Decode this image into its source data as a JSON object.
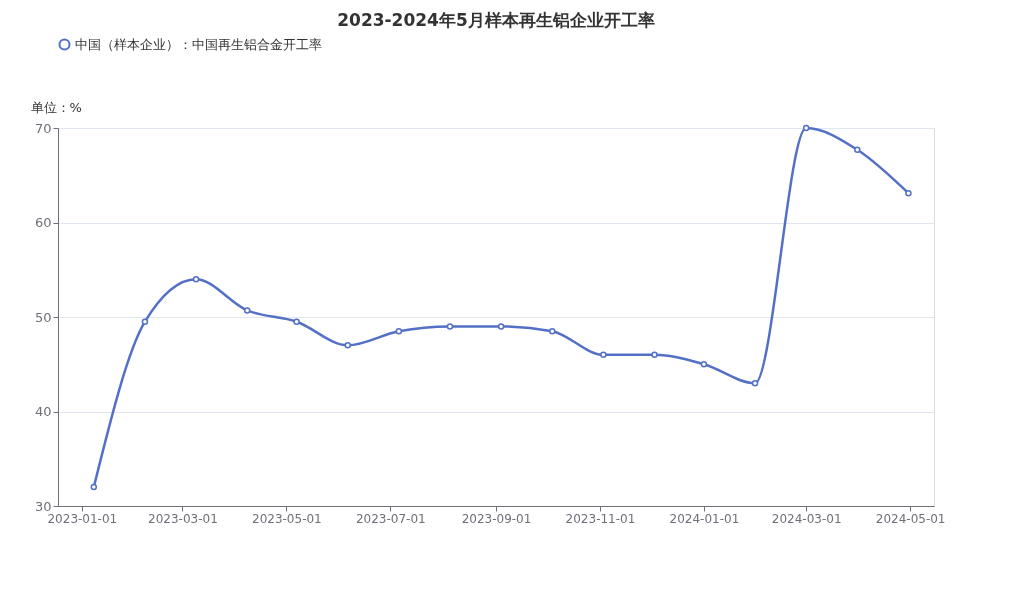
{
  "chart_data": {
    "type": "line",
    "title": "2023-2024年5月样本再生铝企业开工率",
    "ylabel": "单位：%",
    "x": [
      "2023-01-08",
      "2023-02-07",
      "2023-03-09",
      "2023-04-08",
      "2023-05-07",
      "2023-06-06",
      "2023-07-06",
      "2023-08-05",
      "2023-09-04",
      "2023-10-04",
      "2023-11-03",
      "2023-12-03",
      "2024-01-01",
      "2024-01-31",
      "2024-03-01",
      "2024-03-31",
      "2024-04-30"
    ],
    "series": [
      {
        "name": "中国（样本企业）：中国再生铝合金开工率",
        "color": "#5470c6",
        "values": [
          32,
          49.5,
          54,
          50.7,
          49.5,
          47,
          48.5,
          49,
          49,
          48.5,
          46,
          46,
          45,
          43,
          70,
          67.7,
          63.1
        ]
      }
    ],
    "xlim": [
      "2022-12-18",
      "2024-05-15"
    ],
    "xticks": [
      {
        "value": "2023-01-01",
        "label": "2023-01-01"
      },
      {
        "value": "2023-03-01",
        "label": "2023-03-01"
      },
      {
        "value": "2023-05-01",
        "label": "2023-05-01"
      },
      {
        "value": "2023-07-01",
        "label": "2023-07-01"
      },
      {
        "value": "2023-09-01",
        "label": "2023-09-01"
      },
      {
        "value": "2023-11-01",
        "label": "2023-11-01"
      },
      {
        "value": "2024-01-01",
        "label": "2024-01-01"
      },
      {
        "value": "2024-03-01",
        "label": "2024-03-01"
      },
      {
        "value": "2024-05-01",
        "label": "2024-05-01"
      }
    ],
    "ylim": [
      30,
      70
    ],
    "yticks": [
      30,
      40,
      50,
      60,
      70
    ],
    "grid": "y",
    "legend": "top",
    "marker": "circle",
    "line_style": "solid"
  }
}
